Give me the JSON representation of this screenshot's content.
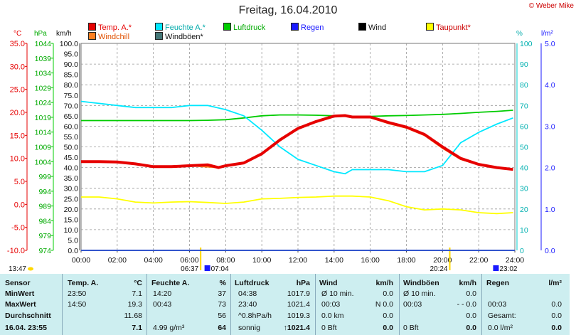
{
  "title": "Freitag, 16.04.2010",
  "copyright": "© Weber Mike",
  "legend": [
    {
      "label": "Temp. A.*",
      "color": "#e60000"
    },
    {
      "label": "Feuchte A.*",
      "color": "#00e8ff"
    },
    {
      "label": "Luftdruck",
      "color": "#00cc00"
    },
    {
      "label": "Regen",
      "color": "#1a1aff"
    },
    {
      "label": "Wind",
      "color": "#000000"
    },
    {
      "label": "Taupunkt*",
      "color": "#ffff00"
    },
    {
      "label": "Windchill",
      "color": "#ff8020"
    },
    {
      "label": "Windböen*",
      "color": "#447777"
    }
  ],
  "axes": {
    "temp_unit": "°C",
    "hpa_unit": "hPa",
    "kmh_unit": "km/h",
    "pct_unit": "%",
    "rain_unit": "l/m²",
    "temp_ticks": [
      "35.0",
      "30.0",
      "25.0",
      "20.0",
      "15.0",
      "10.0",
      "5.0",
      "0.0",
      "-5.0",
      "-10.0"
    ],
    "hpa_ticks": [
      "1044",
      "1039",
      "1034",
      "1029",
      "1024",
      "1019",
      "1014",
      "1009",
      "1004",
      "999",
      "994",
      "989",
      "984",
      "979",
      "974"
    ],
    "kmh_ticks": [
      "100.0",
      "95.0",
      "90.0",
      "85.0",
      "80.0",
      "75.0",
      "70.0",
      "65.0",
      "60.0",
      "55.0",
      "50.0",
      "45.0",
      "40.0",
      "35.0",
      "30.0",
      "25.0",
      "20.0",
      "15.0",
      "10.0",
      "5.0",
      "0.0"
    ],
    "pct_ticks": [
      "100",
      "90",
      "80",
      "70",
      "60",
      "50",
      "40",
      "30",
      "20",
      "10",
      "0"
    ],
    "rain_ticks": [
      "5.0",
      "4.0",
      "3.0",
      "2.0",
      "1.0",
      "0.0"
    ],
    "time_ticks": [
      "00:00",
      "02:00",
      "04:00",
      "06:00",
      "08:00",
      "10:00",
      "12:00",
      "14:00",
      "16:00",
      "18:00",
      "20:00",
      "22:00",
      "24:00"
    ],
    "sunrise": "06:37",
    "sunset": "20:24",
    "moonrise": "07:04",
    "moonset": "23:02",
    "now_label": "13:47"
  },
  "chart_data": {
    "type": "line",
    "title": "Freitag, 16.04.2010",
    "x_unit": "hours",
    "xlim": [
      0,
      24
    ],
    "series": [
      {
        "name": "Temp. A.*",
        "unit": "°C",
        "color": "#e60000",
        "x": [
          0,
          1,
          2,
          3,
          4,
          5,
          6,
          7,
          7.6,
          8,
          9,
          10,
          11,
          12,
          13,
          14,
          14.6,
          15,
          16,
          17,
          18,
          19,
          20,
          21,
          22,
          23,
          23.9
        ],
        "y": [
          9.3,
          9.3,
          9.2,
          8.8,
          8.2,
          8.2,
          8.4,
          8.6,
          8.0,
          8.4,
          9.0,
          11,
          14,
          16.5,
          18,
          19.2,
          19.3,
          19,
          19,
          17.8,
          16.8,
          15.2,
          12.5,
          10,
          8.7,
          8.0,
          7.6
        ]
      },
      {
        "name": "Windchill",
        "unit": "°C",
        "color": "#ff8020",
        "x": [
          0,
          2,
          4,
          6,
          7.6,
          9,
          10,
          11,
          12,
          13,
          14,
          14.6,
          15,
          16,
          17,
          18,
          19,
          20,
          21,
          22,
          23,
          23.9
        ],
        "y": [
          9.3,
          9.2,
          8.2,
          8.4,
          8.0,
          9.0,
          11,
          14.2,
          16.6,
          18,
          19.1,
          19.2,
          19,
          18.9,
          17.6,
          16.6,
          15,
          12.2,
          9.8,
          8.6,
          7.9,
          7.5
        ]
      },
      {
        "name": "Feuchte A.*",
        "unit": "%",
        "color": "#00e8ff",
        "x": [
          0,
          1,
          2,
          3,
          4,
          5,
          6,
          7,
          8,
          9,
          10,
          11,
          12,
          13,
          14,
          14.6,
          15,
          16,
          17,
          18,
          19,
          20,
          21,
          22,
          23,
          23.9
        ],
        "y": [
          72,
          71,
          70,
          69,
          69,
          69,
          70,
          70,
          68,
          65,
          58,
          50,
          44,
          41,
          38,
          37,
          39,
          39,
          39,
          38,
          38,
          41,
          52,
          57,
          61,
          64
        ]
      },
      {
        "name": "Luftdruck",
        "unit": "hPa",
        "color": "#00cc00",
        "x": [
          0,
          2,
          4,
          6,
          7,
          8,
          9,
          10,
          11,
          12,
          13,
          14,
          15,
          16,
          17,
          18,
          19,
          20,
          21,
          22,
          23,
          23.9
        ],
        "y": [
          1017.9,
          1017.9,
          1017.9,
          1017.9,
          1018,
          1018.2,
          1018.8,
          1019.5,
          1019.8,
          1019.8,
          1019.7,
          1019.5,
          1019.3,
          1019.3,
          1019.5,
          1019.6,
          1019.8,
          1020.0,
          1020.3,
          1020.7,
          1021,
          1021.4
        ]
      },
      {
        "name": "Taupunkt*",
        "unit": "°C",
        "color": "#ffff00",
        "x": [
          0,
          1,
          2,
          3,
          4,
          5,
          6,
          7,
          8,
          9,
          10,
          11,
          12,
          13,
          14,
          15,
          16,
          17,
          18,
          19,
          20,
          21,
          22,
          23,
          23.9
        ],
        "y": [
          1.6,
          1.6,
          1.2,
          0.5,
          0.3,
          0.5,
          0.6,
          0.4,
          0.2,
          0.5,
          1.2,
          1.3,
          1.5,
          1.6,
          1.8,
          1.8,
          1.6,
          0.8,
          -0.5,
          -1.2,
          -1.0,
          -1.2,
          -1.8,
          -2.0,
          -1.8
        ]
      },
      {
        "name": "Regen",
        "unit": "l/m²",
        "color": "#1a1aff",
        "x": [
          0,
          24
        ],
        "y": [
          0.0,
          0.0
        ]
      }
    ]
  },
  "table": {
    "headers": [
      "Sensor",
      "Temp. A.",
      "°C",
      "Feuchte A.",
      "%",
      "Luftdruck",
      "hPa",
      "Wind",
      "km/h",
      "Windböen",
      "km/h",
      "Regen",
      "l/m²"
    ],
    "rows": [
      {
        "label": "MinWert",
        "temp_time": "23:50",
        "temp_val": "7.1",
        "hum_time": "14:20",
        "hum_val": "37",
        "pres_time": "04:38",
        "pres_val": "1017.9",
        "wind_label": "Ø 10 min.",
        "wind_val": "0.0",
        "gust_label": "Ø 10 min.",
        "gust_val": "0.0",
        "rain_label": "",
        "rain_val": ""
      },
      {
        "label": "MaxWert",
        "temp_time": "14:50",
        "temp_val": "19.3",
        "hum_time": "00:43",
        "hum_val": "73",
        "pres_time": "23:40",
        "pres_val": "1021.4",
        "wind_label": "00:03",
        "wind_val": "N 0.0",
        "gust_label": "00:03",
        "gust_val": "- - 0.0",
        "rain_label": "00:03",
        "rain_val": "0.0"
      },
      {
        "label": "Durchschnitt",
        "temp_time": "",
        "temp_val": "11.68",
        "hum_time": "",
        "hum_val": "56",
        "pres_time": "^0.8hPa/h",
        "pres_val": "1019.3",
        "wind_label": "0.0 km",
        "wind_val": "0.0",
        "gust_label": "",
        "gust_val": "0.0",
        "rain_label": "Gesamt:",
        "rain_val": "0.0"
      },
      {
        "label": "16.04. 23:55",
        "temp_time": "",
        "temp_val": "7.1",
        "hum_time": "4.99 g/m³",
        "hum_val": "64",
        "pres_time": "sonnig",
        "pres_val": "↑1021.4",
        "wind_label": "0 Bft",
        "wind_val": "0.0",
        "gust_label": "0 Bft",
        "gust_val": "0.0",
        "rain_label": "0.0 l/m²",
        "rain_val": "0.0"
      }
    ]
  }
}
